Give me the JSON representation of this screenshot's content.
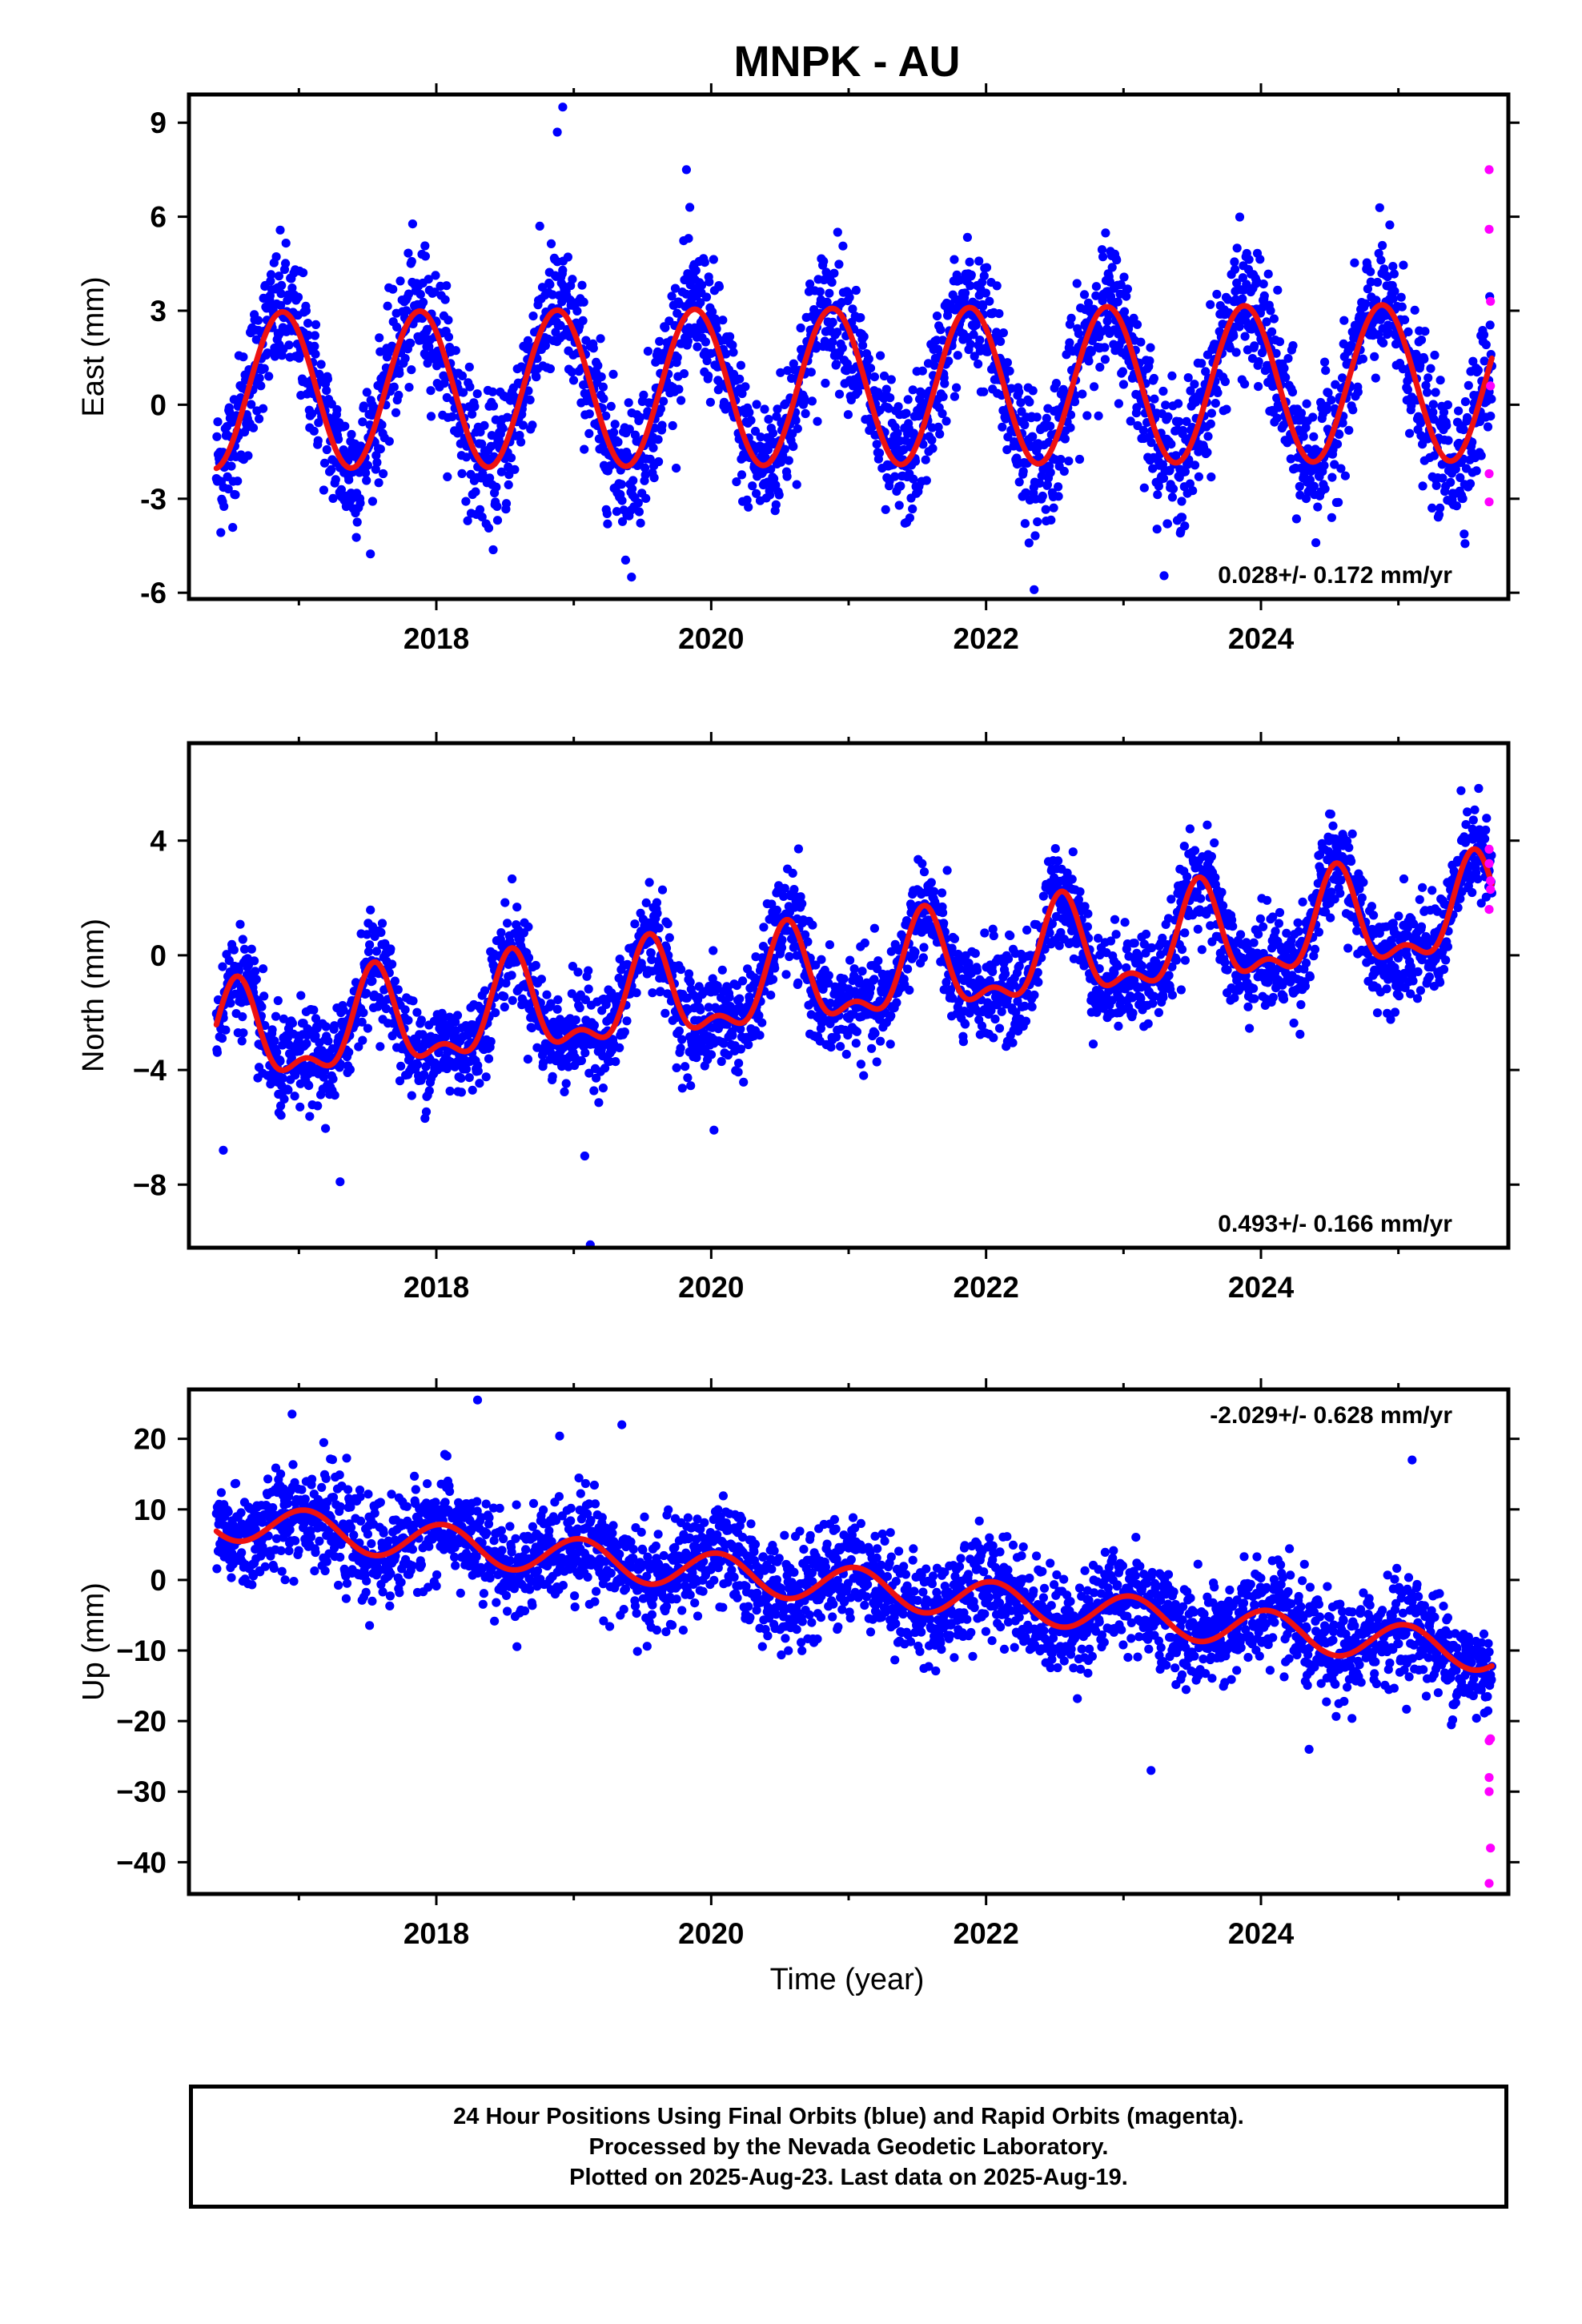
{
  "title": "MNPK - AU",
  "x_axis_label": "Time (year)",
  "x_tick_labels": [
    "2018",
    "2020",
    "2022",
    "2024"
  ],
  "colors": {
    "final_orbits": "#0000ff",
    "rapid_orbits": "#ff00ff",
    "fit": "#ee1111"
  },
  "chart_data": [
    {
      "type": "scatter",
      "component": "east",
      "ylabel": "East (mm)",
      "xlim": [
        2016.2,
        2025.8
      ],
      "ylim": [
        -6.2,
        9.9
      ],
      "yticks": [
        -6,
        -3,
        0,
        3,
        6,
        9
      ],
      "ytick_labels": [
        "-6",
        "-3",
        "0",
        "3",
        "6",
        "9"
      ],
      "xticks": [
        2018,
        2020,
        2022,
        2024
      ],
      "rate_text": "0.028+/- 0.172 mm/yr",
      "rate_position": "bottom-right",
      "model": {
        "start": 2016.4,
        "end": 2025.68,
        "offset": 0.45,
        "trend": 0.028,
        "annual_amp": 2.5,
        "annual_peak": 2016.88,
        "semi_amp": 0.0,
        "semi_phase": 0.0
      },
      "noise_sd": 1.05,
      "outliers": [
        [
          2018.92,
          9.5
        ],
        [
          2018.88,
          8.7
        ],
        [
          2019.82,
          7.5
        ],
        [
          2022.35,
          -5.9
        ],
        [
          2019.42,
          -5.5
        ]
      ],
      "rapid_points": [
        [
          2025.66,
          7.5
        ],
        [
          2025.66,
          5.6
        ],
        [
          2025.67,
          3.3
        ],
        [
          2025.67,
          0.6
        ],
        [
          2025.66,
          -2.2
        ],
        [
          2025.66,
          -3.1
        ]
      ]
    },
    {
      "type": "scatter",
      "component": "north",
      "ylabel": "North (mm)",
      "xlim": [
        2016.2,
        2025.8
      ],
      "ylim": [
        -10.2,
        7.4
      ],
      "yticks": [
        -8,
        -4,
        0,
        4
      ],
      "ytick_labels": [
        "−8",
        "−4",
        "0",
        "4"
      ],
      "xticks": [
        2018,
        2020,
        2022,
        2024
      ],
      "rate_text": "0.493+/- 0.166 mm/yr",
      "rate_position": "bottom-right",
      "model": {
        "start": 2016.4,
        "end": 2025.68,
        "offset": -3.1,
        "trend": 0.493,
        "annual_amp": 1.55,
        "annual_peak": 2016.55,
        "semi_amp": 0.75,
        "semi_phase": 2016.55
      },
      "noise_sd": 0.85,
      "outliers": [
        [
          2019.12,
          -10.1
        ],
        [
          2019.08,
          -7.0
        ],
        [
          2020.02,
          -6.1
        ],
        [
          2016.45,
          -6.8
        ],
        [
          2017.3,
          -7.9
        ]
      ],
      "rapid_points": [
        [
          2025.66,
          3.7
        ],
        [
          2025.66,
          3.2
        ],
        [
          2025.67,
          2.6
        ],
        [
          2025.67,
          2.3
        ],
        [
          2025.66,
          1.6
        ]
      ]
    },
    {
      "type": "scatter",
      "component": "up",
      "ylabel": "Up (mm)",
      "xlim": [
        2016.2,
        2025.8
      ],
      "ylim": [
        -44.5,
        27
      ],
      "yticks": [
        -40,
        -30,
        -20,
        -10,
        0,
        10,
        20
      ],
      "ytick_labels": [
        "−40",
        "−30",
        "−20",
        "−10",
        "0",
        "10",
        "20"
      ],
      "xticks": [
        2018,
        2020,
        2022,
        2024
      ],
      "rate_text": "-2.029+/- 0.628 mm/yr",
      "rate_position": "top-right",
      "model": {
        "start": 2016.4,
        "end": 2025.68,
        "offset": 8.5,
        "trend": -2.029,
        "annual_amp": 2.7,
        "annual_peak": 2017.05,
        "semi_amp": 0.0,
        "semi_phase": 0.0
      },
      "noise_sd": 3.6,
      "outliers": [
        [
          2018.3,
          25.5
        ],
        [
          2016.95,
          23.5
        ],
        [
          2019.35,
          22.0
        ],
        [
          2023.2,
          -27.0
        ],
        [
          2024.35,
          -24.0
        ],
        [
          2025.1,
          17.0
        ]
      ],
      "rapid_points": [
        [
          2025.66,
          -22.8
        ],
        [
          2025.67,
          -22.5
        ],
        [
          2025.66,
          -28.0
        ],
        [
          2025.66,
          -30.0
        ],
        [
          2025.67,
          -38.0
        ],
        [
          2025.66,
          -43.0
        ]
      ]
    }
  ],
  "caption": {
    "line1": "24 Hour Positions Using Final Orbits (blue) and Rapid Orbits (magenta).",
    "line2": "Processed by the Nevada Geodetic Laboratory.",
    "line3": "Plotted on 2025-Aug-23. Last data on 2025-Aug-19."
  }
}
